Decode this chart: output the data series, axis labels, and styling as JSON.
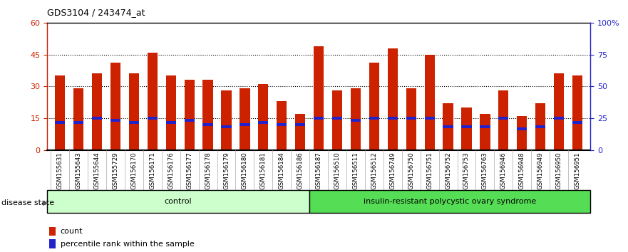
{
  "title": "GDS3104 / 243474_at",
  "samples": [
    "GSM155631",
    "GSM155643",
    "GSM155644",
    "GSM155729",
    "GSM156170",
    "GSM156171",
    "GSM156176",
    "GSM156177",
    "GSM156178",
    "GSM156179",
    "GSM156180",
    "GSM156181",
    "GSM156184",
    "GSM156186",
    "GSM156187",
    "GSM156510",
    "GSM156511",
    "GSM156512",
    "GSM156749",
    "GSM156750",
    "GSM156751",
    "GSM156752",
    "GSM156753",
    "GSM156763",
    "GSM156946",
    "GSM156948",
    "GSM156949",
    "GSM156950",
    "GSM156951"
  ],
  "counts": [
    35,
    29,
    36,
    41,
    36,
    46,
    35,
    33,
    33,
    28,
    29,
    31,
    23,
    17,
    49,
    28,
    29,
    41,
    48,
    29,
    45,
    22,
    20,
    17,
    28,
    16,
    22,
    36,
    35
  ],
  "percentile_ranks": [
    13,
    13,
    15,
    14,
    13,
    15,
    13,
    14,
    12,
    11,
    12,
    13,
    12,
    12,
    15,
    15,
    14,
    15,
    15,
    15,
    15,
    11,
    11,
    11,
    15,
    10,
    11,
    15,
    13
  ],
  "control_count": 14,
  "disease_count": 15,
  "bar_color": "#cc2200",
  "dot_color": "#2222cc",
  "control_label": "control",
  "disease_label": "insulin-resistant polycystic ovary syndrome",
  "disease_state_label": "disease state",
  "left_axis_color": "#cc2200",
  "right_axis_color": "#2222cc",
  "ylim_left": [
    0,
    60
  ],
  "ylim_right": [
    0,
    100
  ],
  "left_ticks": [
    0,
    15,
    30,
    45,
    60
  ],
  "right_ticks": [
    0,
    25,
    50,
    75,
    100
  ],
  "right_tick_labels": [
    "0",
    "25",
    "50",
    "75",
    "100%"
  ],
  "dotted_lines": [
    15,
    30,
    45
  ],
  "bar_width": 0.55,
  "control_bg": "#ccffcc",
  "disease_bg": "#55dd55"
}
